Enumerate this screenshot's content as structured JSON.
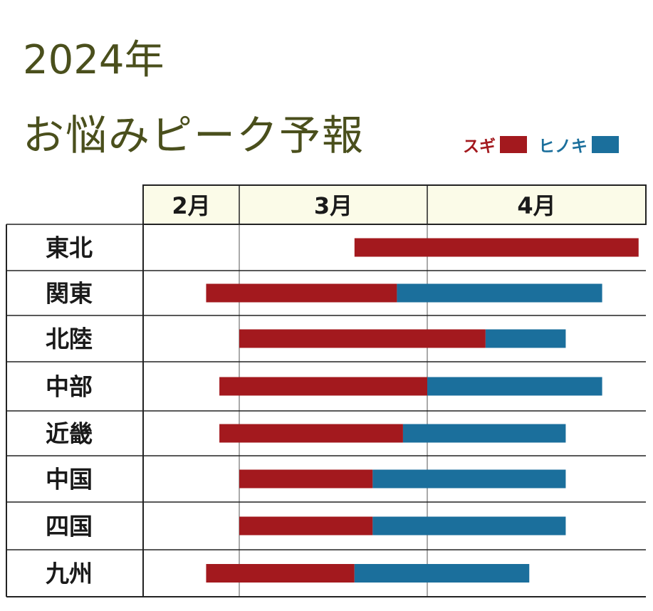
{
  "title": {
    "year": "2024年",
    "main": "お悩みピーク予報"
  },
  "colors": {
    "sugi": "#a3191e",
    "hinoki": "#1b6f9c",
    "title": "#4a4f1c",
    "header_bg": "#fbfbe8",
    "grid": "#222222"
  },
  "chart_data": {
    "type": "bar",
    "orientation": "horizontal",
    "stacked": true,
    "months": [
      "2月",
      "3月",
      "4月"
    ],
    "categories": [
      "東北",
      "関東",
      "北陸",
      "中部",
      "近畿",
      "中国",
      "四国",
      "九州"
    ],
    "legend": {
      "placement": "top-right",
      "entries": [
        "スギ",
        "ヒノキ"
      ]
    },
    "series": [
      {
        "name": "スギ",
        "color": "#a3191e",
        "start": [
          "2024-03-20",
          "2024-02-20",
          "2024-03-01",
          "2024-02-24",
          "2024-02-24",
          "2024-03-01",
          "2024-03-01",
          "2024-02-20"
        ],
        "end": [
          "2024-04-30",
          "2024-03-27",
          "2024-04-09",
          "2024-04-01",
          "2024-03-28",
          "2024-03-23",
          "2024-03-23",
          "2024-03-20"
        ]
      },
      {
        "name": "ヒノキ",
        "color": "#1b6f9c",
        "start": [
          null,
          "2024-03-27",
          "2024-04-09",
          "2024-04-01",
          "2024-03-28",
          "2024-03-23",
          "2024-03-23",
          "2024-03-20"
        ],
        "end": [
          null,
          "2024-04-25",
          "2024-04-20",
          "2024-04-25",
          "2024-04-20",
          "2024-04-20",
          "2024-04-20",
          "2024-04-15"
        ]
      }
    ]
  }
}
